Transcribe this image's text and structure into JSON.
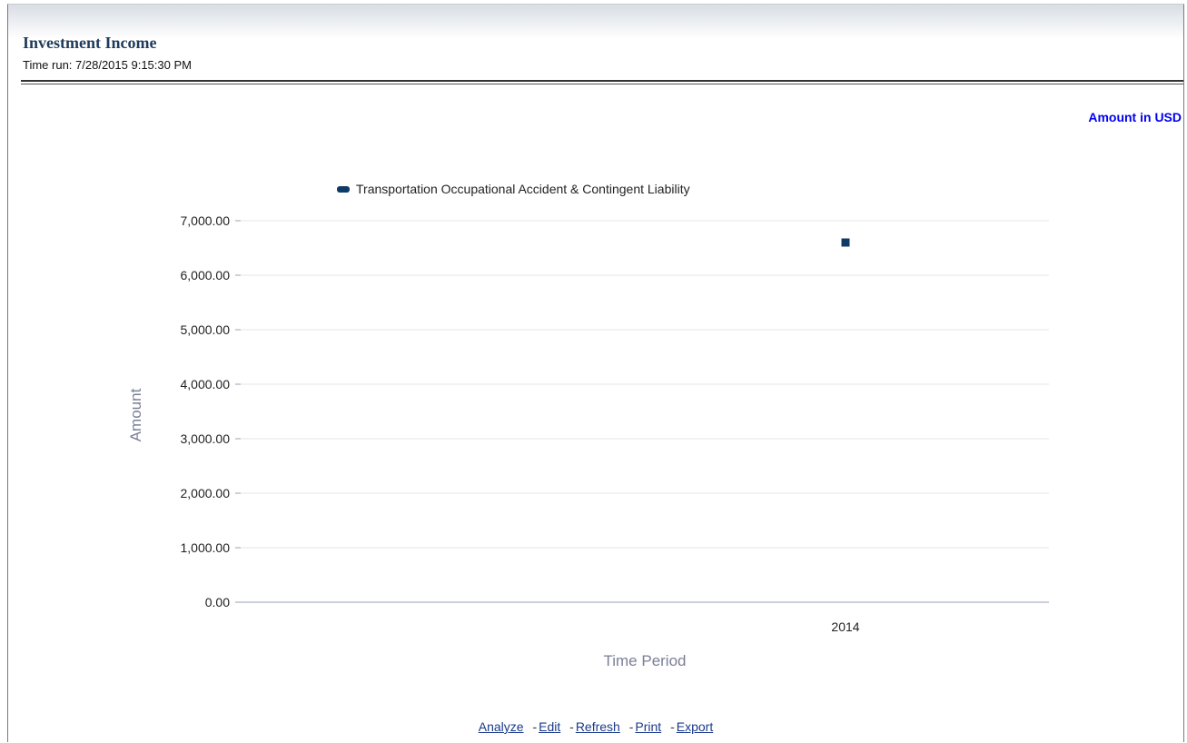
{
  "report": {
    "title": "Investment Income",
    "time_run": "Time run: 7/28/2015 9:15:30 PM",
    "amount_note": "Amount in USD"
  },
  "footer": {
    "links": [
      {
        "label": "Analyze"
      },
      {
        "label": "Edit"
      },
      {
        "label": "Refresh"
      },
      {
        "label": "Print"
      },
      {
        "label": "Export"
      }
    ],
    "separator": "-"
  },
  "colors": {
    "series": "#0e3a66",
    "axis_title": "#7a7f96",
    "gridline": "#e2e4ea",
    "axis_line": "#9aa0b8"
  },
  "chart_data": {
    "type": "scatter",
    "xlabel": "Time Period",
    "ylabel": "Amount",
    "categories": [
      "2014"
    ],
    "ylim": [
      0,
      7000
    ],
    "yticks": [
      0,
      1000,
      2000,
      3000,
      4000,
      5000,
      6000,
      7000
    ],
    "ytick_labels": [
      "0.00",
      "1,000.00",
      "2,000.00",
      "3,000.00",
      "4,000.00",
      "5,000.00",
      "6,000.00",
      "7,000.00"
    ],
    "grid": true,
    "legend_position": "top",
    "series": [
      {
        "name": "Transportation Occupational Accident & Contingent Liability",
        "values": [
          6600
        ]
      }
    ]
  }
}
